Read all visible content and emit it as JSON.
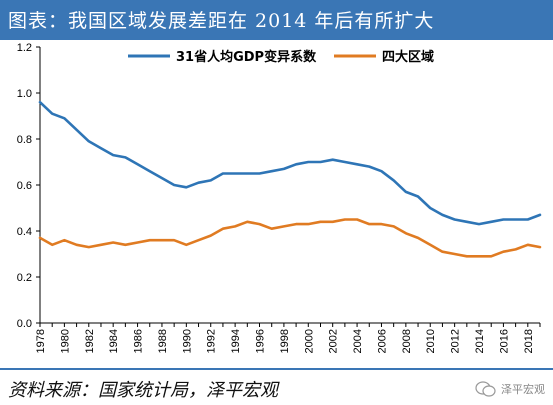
{
  "header": {
    "title": "图表：我国区域发展差距在 2014 年后有所扩大"
  },
  "footer": {
    "source": "资料来源：国家统计局，泽平宏观",
    "watermark": "泽平宏观"
  },
  "colors": {
    "header_bg": "#3a76b5",
    "series1": "#2e75b6",
    "series2": "#e07b22"
  },
  "chart_data": {
    "type": "line",
    "title": "",
    "xlabel": "",
    "ylabel": "",
    "ylim": [
      0,
      1.2
    ],
    "yticks": [
      "0.0",
      "0.2",
      "0.4",
      "0.6",
      "0.8",
      "1.0",
      "1.2"
    ],
    "xticks": [
      "1978",
      "1980",
      "1982",
      "1984",
      "1986",
      "1988",
      "1990",
      "1992",
      "1994",
      "1996",
      "1998",
      "2000",
      "2002",
      "2004",
      "2006",
      "2008",
      "2010",
      "2012",
      "2014",
      "2016",
      "2018"
    ],
    "legend_position": "top-center",
    "grid": false,
    "x": [
      1978,
      1979,
      1980,
      1981,
      1982,
      1983,
      1984,
      1985,
      1986,
      1987,
      1988,
      1989,
      1990,
      1991,
      1992,
      1993,
      1994,
      1995,
      1996,
      1997,
      1998,
      1999,
      2000,
      2001,
      2002,
      2003,
      2004,
      2005,
      2006,
      2007,
      2008,
      2009,
      2010,
      2011,
      2012,
      2013,
      2014,
      2015,
      2016,
      2017,
      2018,
      2019
    ],
    "series": [
      {
        "name": "31省人均GDP变异系数",
        "color": "#2e75b6",
        "values": [
          0.96,
          0.91,
          0.89,
          0.84,
          0.79,
          0.76,
          0.73,
          0.72,
          0.69,
          0.66,
          0.63,
          0.6,
          0.59,
          0.61,
          0.62,
          0.65,
          0.65,
          0.65,
          0.65,
          0.66,
          0.67,
          0.69,
          0.7,
          0.7,
          0.71,
          0.7,
          0.69,
          0.68,
          0.66,
          0.62,
          0.57,
          0.55,
          0.5,
          0.47,
          0.45,
          0.44,
          0.43,
          0.44,
          0.45,
          0.45,
          0.45,
          0.47
        ]
      },
      {
        "name": "四大区域",
        "color": "#e07b22",
        "values": [
          0.37,
          0.34,
          0.36,
          0.34,
          0.33,
          0.34,
          0.35,
          0.34,
          0.35,
          0.36,
          0.36,
          0.36,
          0.34,
          0.36,
          0.38,
          0.41,
          0.42,
          0.44,
          0.43,
          0.41,
          0.42,
          0.43,
          0.43,
          0.44,
          0.44,
          0.45,
          0.45,
          0.43,
          0.43,
          0.42,
          0.39,
          0.37,
          0.34,
          0.31,
          0.3,
          0.29,
          0.29,
          0.29,
          0.31,
          0.32,
          0.34,
          0.33
        ]
      }
    ]
  }
}
